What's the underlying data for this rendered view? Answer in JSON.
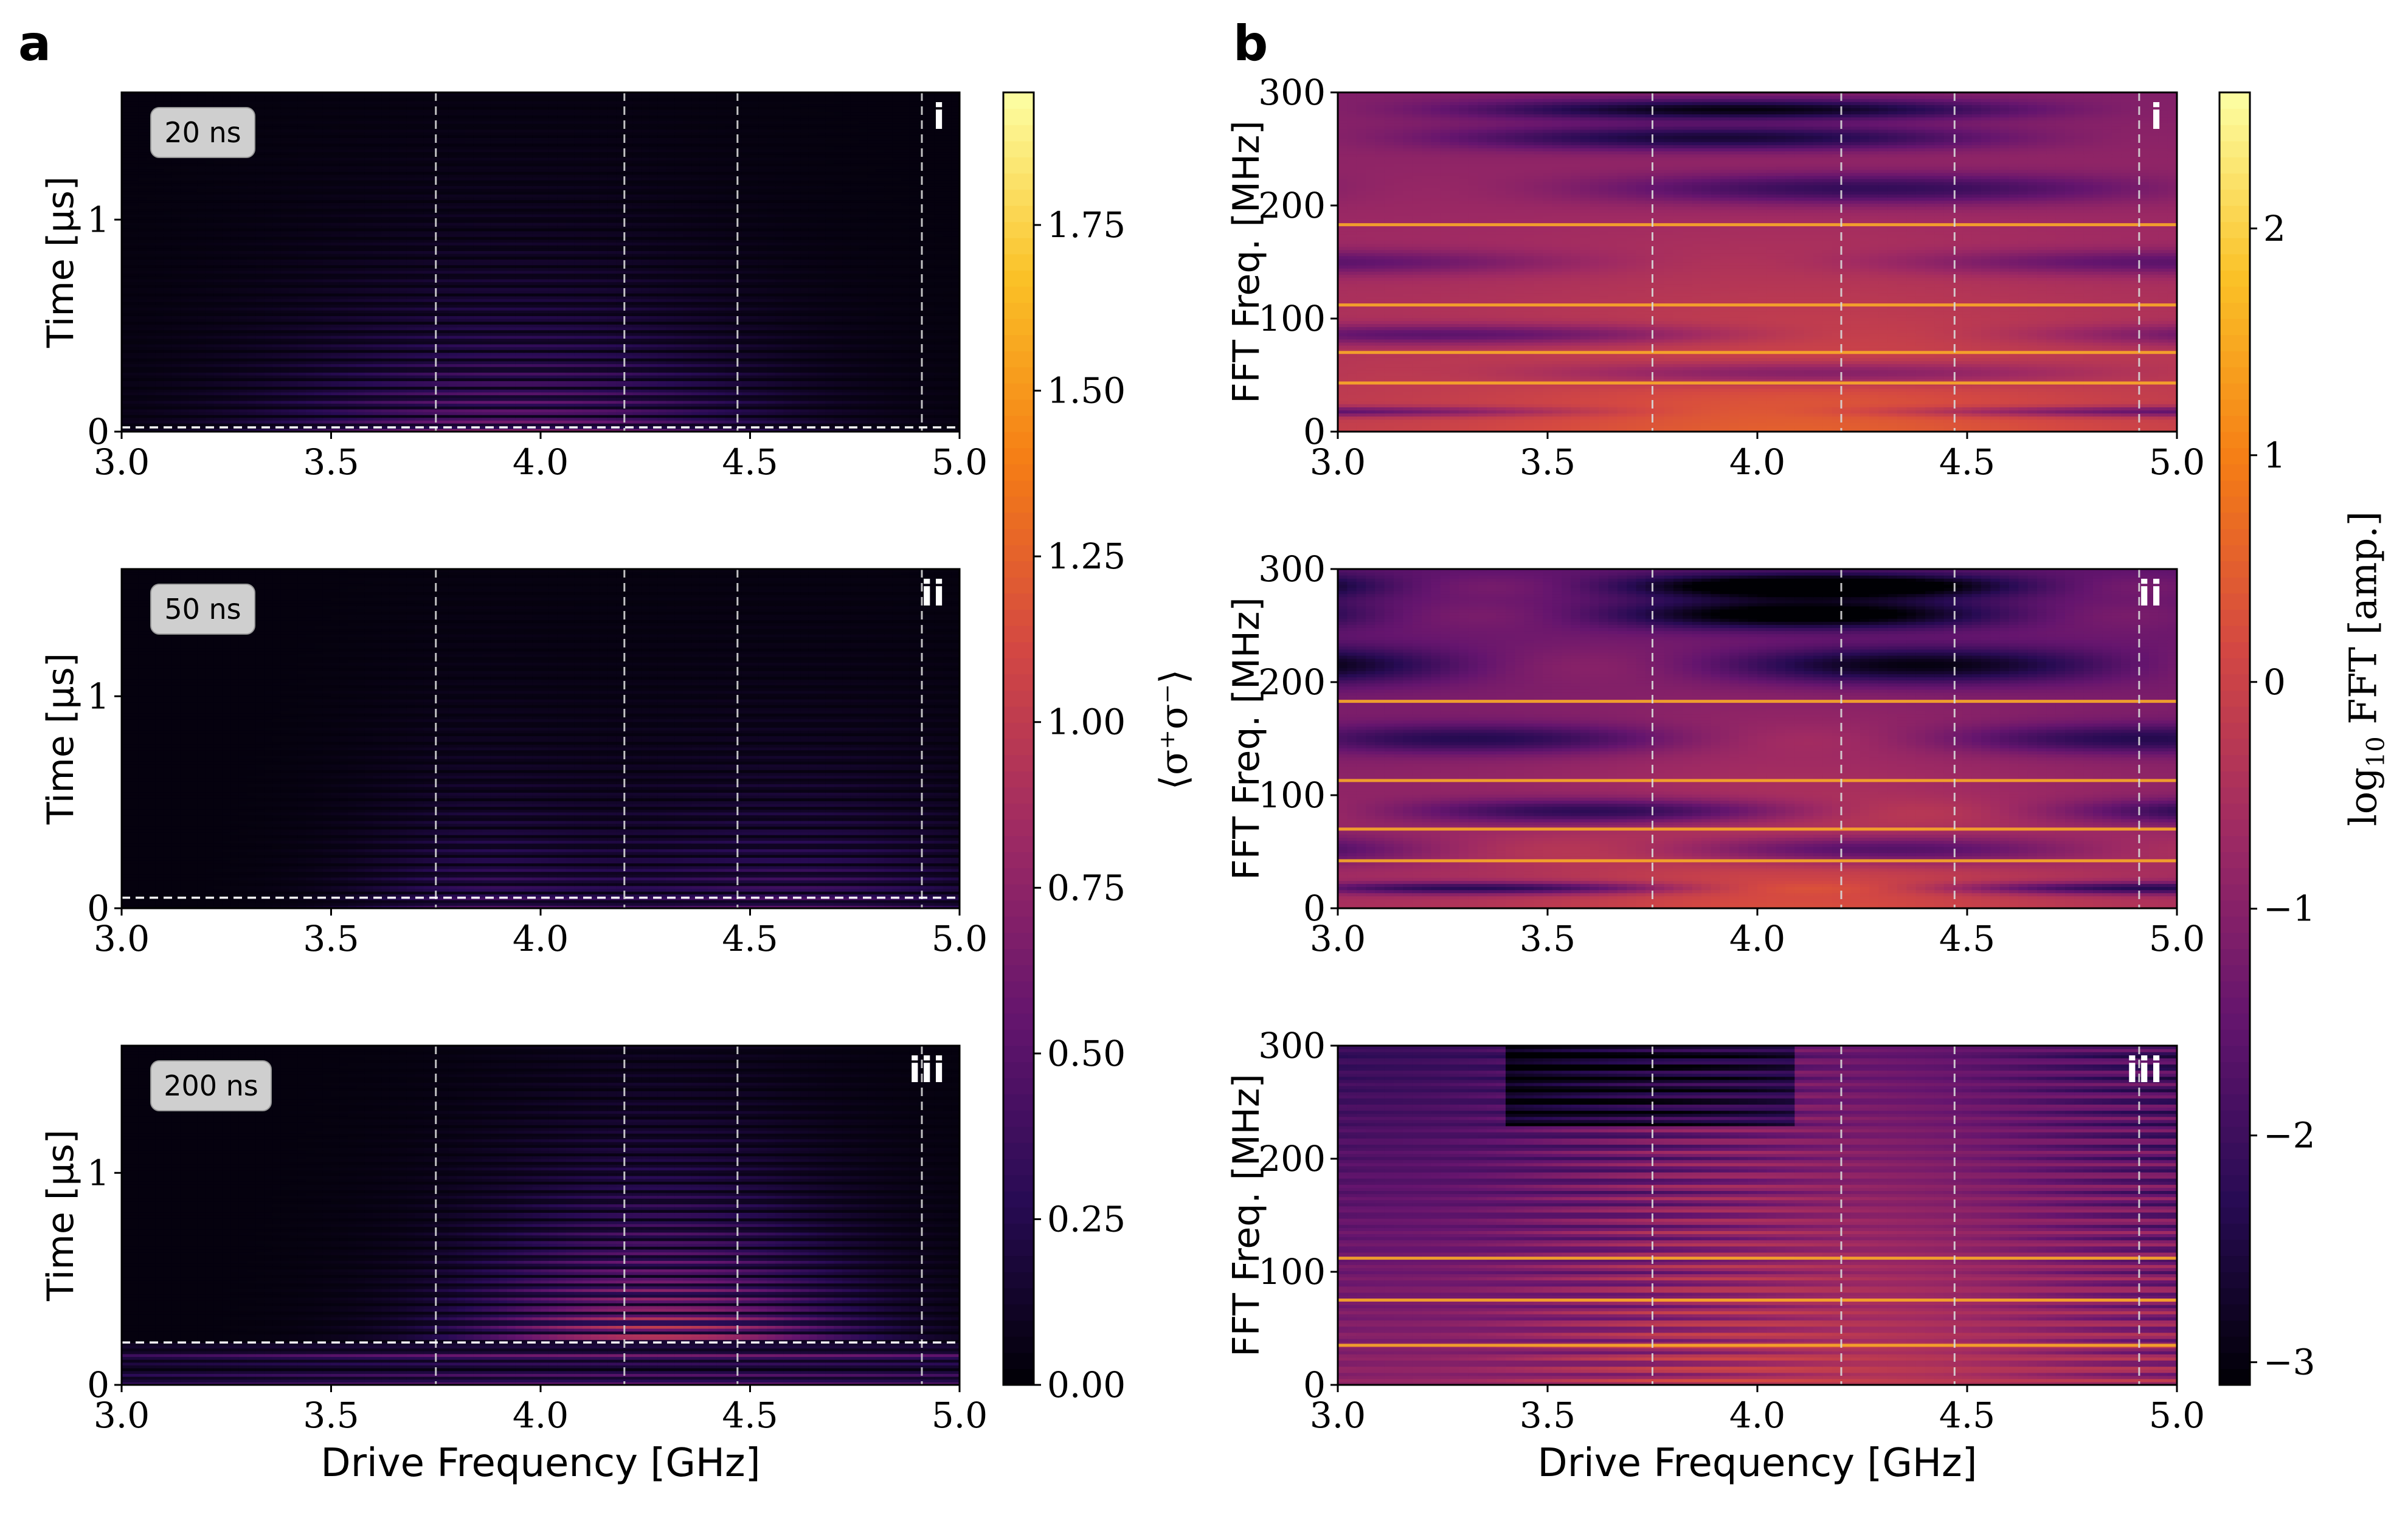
{
  "panels": {
    "a": "a",
    "b": "b"
  },
  "colormap": "inferno",
  "colorbars": {
    "a": {
      "label": "⟨σ⁺σ⁻⟩",
      "ticks": [
        "0.00",
        "0.25",
        "0.50",
        "0.75",
        "1.00",
        "1.25",
        "1.50",
        "1.75"
      ],
      "range": [
        0,
        1.95
      ]
    },
    "b": {
      "label_prefix": "log",
      "label_sub": "10",
      "label_suffix": " FFT [amp.]",
      "ticks": [
        "−3",
        "−2",
        "−1",
        "0",
        "1",
        "2"
      ],
      "range": [
        -3.1,
        2.6
      ]
    }
  },
  "chart_data": [
    {
      "type": "heatmap",
      "id": "a-i",
      "badge": "20 ns",
      "roman": "i",
      "xlabel": "",
      "ylabel": "Time [μs]",
      "xlim": [
        3.0,
        5.0
      ],
      "ylim": [
        0,
        1.6
      ],
      "xticks": [
        "3.0",
        "3.5",
        "4.0",
        "4.5",
        "5.0"
      ],
      "yticks": [
        "0",
        "1"
      ],
      "vlines": [
        3.75,
        4.2,
        4.47,
        4.91
      ],
      "hline": 0.02
    },
    {
      "type": "heatmap",
      "id": "a-ii",
      "badge": "50 ns",
      "roman": "ii",
      "xlabel": "",
      "ylabel": "Time [μs]",
      "xlim": [
        3.0,
        5.0
      ],
      "ylim": [
        0,
        1.6
      ],
      "xticks": [
        "3.0",
        "3.5",
        "4.0",
        "4.5",
        "5.0"
      ],
      "yticks": [
        "0",
        "1"
      ],
      "vlines": [
        3.75,
        4.2,
        4.47,
        4.91
      ],
      "hline": 0.05
    },
    {
      "type": "heatmap",
      "id": "a-iii",
      "badge": "200 ns",
      "roman": "iii",
      "xlabel": "Drive Frequency [GHz]",
      "ylabel": "Time [μs]",
      "xlim": [
        3.0,
        5.0
      ],
      "ylim": [
        0,
        1.6
      ],
      "xticks": [
        "3.0",
        "3.5",
        "4.0",
        "4.5",
        "5.0"
      ],
      "yticks": [
        "0",
        "1"
      ],
      "vlines": [
        3.75,
        4.2,
        4.47,
        4.91
      ],
      "hline": 0.2
    },
    {
      "type": "heatmap",
      "id": "b-i",
      "roman": "i",
      "xlabel": "",
      "ylabel": "FFT Freq. [MHz]",
      "xlim": [
        3.0,
        5.0
      ],
      "ylim": [
        0,
        300
      ],
      "xticks": [
        "3.0",
        "3.5",
        "4.0",
        "4.5",
        "5.0"
      ],
      "yticks": [
        "0",
        "100",
        "200",
        "300"
      ],
      "vlines": [
        3.75,
        4.2,
        4.47,
        4.91
      ],
      "bright_lines_mhz": [
        43,
        70,
        112,
        183
      ]
    },
    {
      "type": "heatmap",
      "id": "b-ii",
      "roman": "ii",
      "xlabel": "",
      "ylabel": "FFT Freq. [MHz]",
      "xlim": [
        3.0,
        5.0
      ],
      "ylim": [
        0,
        300
      ],
      "xticks": [
        "3.0",
        "3.5",
        "4.0",
        "4.5",
        "5.0"
      ],
      "yticks": [
        "0",
        "100",
        "200",
        "300"
      ],
      "vlines": [
        3.75,
        4.2,
        4.47,
        4.91
      ],
      "bright_lines_mhz": [
        42,
        70,
        113,
        183
      ]
    },
    {
      "type": "heatmap",
      "id": "b-iii",
      "roman": "iii",
      "xlabel": "Drive Frequency [GHz]",
      "ylabel": "FFT Freq. [MHz]",
      "xlim": [
        3.0,
        5.0
      ],
      "ylim": [
        0,
        300
      ],
      "xticks": [
        "3.0",
        "3.5",
        "4.0",
        "4.5",
        "5.0"
      ],
      "yticks": [
        "0",
        "100",
        "200",
        "300"
      ],
      "vlines": [
        3.75,
        4.2,
        4.47,
        4.91
      ],
      "bright_lines_mhz": [
        35,
        75,
        112
      ]
    }
  ]
}
